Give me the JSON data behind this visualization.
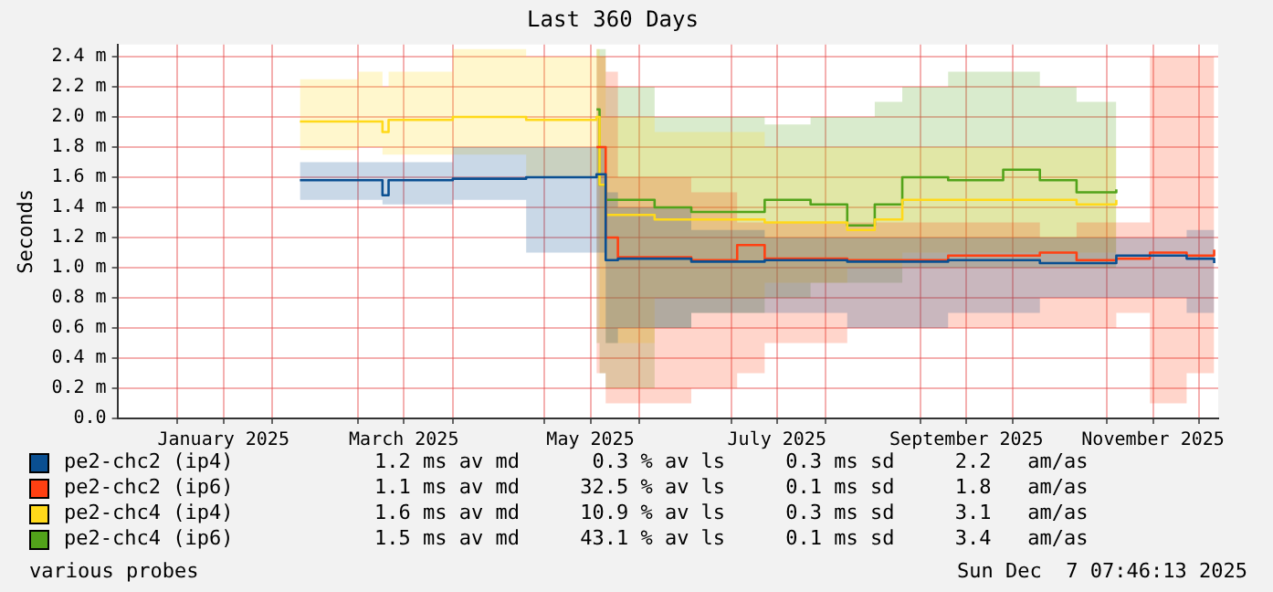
{
  "chart_data": {
    "type": "step",
    "title": "Last 360 Days",
    "ylabel": "Seconds",
    "xlim": [
      "2024-12-12T07:46",
      "2025-12-07T07:46"
    ],
    "xticks": [
      {
        "value": "2025-01-01",
        "label": null
      },
      {
        "value": "2025-01-16",
        "label": "January 2025"
      },
      {
        "value": "2025-02-01",
        "label": null
      },
      {
        "value": "2025-03-01",
        "label": null
      },
      {
        "value": "2025-03-16",
        "label": "March 2025"
      },
      {
        "value": "2025-04-01",
        "label": null
      },
      {
        "value": "2025-05-01",
        "label": null
      },
      {
        "value": "2025-05-16",
        "label": "May 2025"
      },
      {
        "value": "2025-06-01",
        "label": null
      },
      {
        "value": "2025-07-01",
        "label": null
      },
      {
        "value": "2025-07-16",
        "label": "July 2025"
      },
      {
        "value": "2025-08-01",
        "label": null
      },
      {
        "value": "2025-09-01",
        "label": null
      },
      {
        "value": "2025-09-16",
        "label": "September 2025"
      },
      {
        "value": "2025-10-01",
        "label": null
      },
      {
        "value": "2025-11-01",
        "label": null
      },
      {
        "value": "2025-11-16",
        "label": "November 2025"
      },
      {
        "value": "2025-12-01",
        "label": null
      }
    ],
    "ylim": [
      0,
      2.48
    ],
    "yticks": [
      {
        "value": 0,
        "label": "0.0"
      },
      {
        "value": 0.2,
        "label": "0.2 m"
      },
      {
        "value": 0.4,
        "label": "0.4 m"
      },
      {
        "value": 0.6,
        "label": "0.6 m"
      },
      {
        "value": 0.8,
        "label": "0.8 m"
      },
      {
        "value": 1.0,
        "label": "1.0 m"
      },
      {
        "value": 1.2,
        "label": "1.2 m"
      },
      {
        "value": 1.4,
        "label": "1.4 m"
      },
      {
        "value": 1.6,
        "label": "1.6 m"
      },
      {
        "value": 1.8,
        "label": "1.8 m"
      },
      {
        "value": 2.0,
        "label": "2.0 m"
      },
      {
        "value": 2.2,
        "label": "2.2 m"
      },
      {
        "value": 2.4,
        "label": "2.4 m"
      }
    ],
    "grid": true,
    "legend": "bottom",
    "series": [
      {
        "name": "pe2-chc2 (ip4)",
        "color": "#0a4f91",
        "x": [
          "2025-02-10",
          "2025-03-01",
          "2025-03-09",
          "2025-03-11",
          "2025-04-01",
          "2025-04-25",
          "2025-05-18",
          "2025-05-21",
          "2025-05-25",
          "2025-06-18",
          "2025-07-12",
          "2025-08-08",
          "2025-09-10",
          "2025-10-10",
          "2025-11-04",
          "2025-11-27",
          "2025-12-06"
        ],
        "values": [
          1.58,
          1.58,
          1.48,
          1.58,
          1.59,
          1.6,
          1.62,
          1.05,
          1.06,
          1.04,
          1.05,
          1.04,
          1.05,
          1.03,
          1.08,
          1.06,
          1.03
        ],
        "lower": [
          1.45,
          1.45,
          1.42,
          1.42,
          1.45,
          1.1,
          1.1,
          0.5,
          0.6,
          0.7,
          0.7,
          0.6,
          0.7,
          0.8,
          0.8,
          0.7,
          0.8
        ],
        "upper": [
          1.7,
          1.7,
          1.7,
          1.7,
          1.8,
          1.8,
          1.8,
          1.5,
          1.4,
          1.25,
          1.2,
          1.2,
          1.2,
          1.2,
          1.2,
          1.25,
          1.2
        ]
      },
      {
        "name": "pe2-chc2 (ip6)",
        "color": "#ff4012",
        "x": [
          "2025-05-18",
          "2025-05-21",
          "2025-05-25",
          "2025-06-18",
          "2025-07-03",
          "2025-07-12",
          "2025-08-08",
          "2025-09-10",
          "2025-10-10",
          "2025-10-22",
          "2025-11-04",
          "2025-11-15",
          "2025-11-27",
          "2025-12-06"
        ],
        "values": [
          1.8,
          1.2,
          1.07,
          1.05,
          1.15,
          1.06,
          1.05,
          1.08,
          1.1,
          1.05,
          1.06,
          1.1,
          1.08,
          1.12
        ],
        "lower": [
          0.3,
          0.1,
          0.1,
          0.2,
          0.3,
          0.5,
          0.6,
          0.6,
          0.6,
          0.6,
          0.7,
          0.1,
          0.3,
          0.6
        ],
        "upper": [
          2.4,
          2.3,
          1.6,
          1.5,
          1.3,
          1.3,
          1.3,
          1.3,
          1.2,
          1.3,
          1.3,
          2.4,
          2.4,
          1.6
        ]
      },
      {
        "name": "pe2-chc4 (ip4)",
        "color": "#ffd91a",
        "x": [
          "2025-02-10",
          "2025-03-01",
          "2025-03-09",
          "2025-03-11",
          "2025-04-01",
          "2025-04-25",
          "2025-05-18",
          "2025-05-19",
          "2025-05-21",
          "2025-06-06",
          "2025-07-12",
          "2025-08-08",
          "2025-08-17",
          "2025-08-26",
          "2025-09-28",
          "2025-10-22",
          "2025-11-04"
        ],
        "values": [
          1.97,
          1.97,
          1.9,
          1.98,
          2.0,
          1.98,
          2.0,
          1.55,
          1.35,
          1.32,
          1.3,
          1.25,
          1.32,
          1.45,
          1.45,
          1.42,
          1.45
        ],
        "lower": [
          1.78,
          1.8,
          1.75,
          1.75,
          1.75,
          1.6,
          1.6,
          0.6,
          0.5,
          0.8,
          0.9,
          1.0,
          1.0,
          1.1,
          1.1,
          1.1,
          1.1
        ],
        "upper": [
          2.25,
          2.3,
          2.2,
          2.3,
          2.45,
          2.4,
          2.45,
          2.4,
          2.0,
          1.9,
          1.8,
          1.8,
          1.8,
          1.8,
          1.8,
          1.8,
          1.75
        ]
      },
      {
        "name": "pe2-chc4 (ip6)",
        "color": "#52a31a",
        "x": [
          "2025-05-18",
          "2025-05-19",
          "2025-05-21",
          "2025-06-06",
          "2025-06-18",
          "2025-07-12",
          "2025-07-27",
          "2025-08-08",
          "2025-08-17",
          "2025-08-26",
          "2025-09-10",
          "2025-09-28",
          "2025-10-10",
          "2025-10-22",
          "2025-11-04"
        ],
        "values": [
          2.05,
          1.55,
          1.45,
          1.4,
          1.37,
          1.45,
          1.42,
          1.28,
          1.42,
          1.6,
          1.58,
          1.65,
          1.58,
          1.5,
          1.52
        ],
        "lower": [
          0.5,
          0.3,
          0.2,
          0.6,
          0.7,
          0.8,
          0.9,
          0.9,
          0.9,
          1.0,
          1.0,
          1.0,
          1.0,
          1.0,
          1.0
        ],
        "upper": [
          2.45,
          2.45,
          2.2,
          2.0,
          2.0,
          1.95,
          2.0,
          2.0,
          2.1,
          2.2,
          2.3,
          2.3,
          2.2,
          2.1,
          2.1
        ]
      }
    ],
    "annotations": [
      "1.2 ms av md      0.3 % av ls     0.3 ms sd     2.2   am/as",
      "1.1 ms av md     32.5 % av ls     0.1 ms sd     1.8   am/as",
      "1.6 ms av md     10.9 % av ls     0.3 ms sd     3.1   am/as",
      "1.5 ms av md     43.1 % av ls     0.1 ms sd     3.4   am/as",
      "various probes",
      "Sun Dec  7 07:46:13 2025"
    ]
  }
}
